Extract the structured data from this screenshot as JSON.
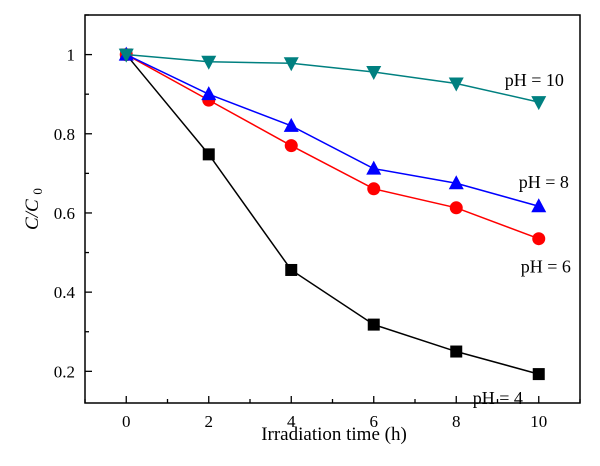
{
  "chart_data": {
    "type": "line",
    "xlabel": "Irradiation time (h)",
    "ylabel": {
      "main": "C/C",
      "sub": "0"
    },
    "xlim": [
      -1,
      11
    ],
    "ylim": [
      0.12,
      1.1
    ],
    "x_ticks": [
      0,
      2,
      4,
      6,
      8,
      10
    ],
    "x_tick_labels": [
      "0",
      "2",
      "4",
      "6",
      "8",
      "10"
    ],
    "y_ticks": [
      0.2,
      0.4,
      0.6,
      0.8,
      1.0
    ],
    "y_tick_labels": [
      "0.2",
      "0.4",
      "0.6",
      "0.8",
      "1"
    ],
    "grid": false,
    "legend": "none",
    "series": [
      {
        "name": "pH = 4",
        "color": "#000000",
        "marker": "square",
        "x": [
          0,
          2,
          4,
          6,
          8,
          10
        ],
        "y": [
          1.0,
          0.748,
          0.456,
          0.318,
          0.25,
          0.193
        ]
      },
      {
        "name": "pH = 6",
        "color": "#ff0000",
        "marker": "circle",
        "x": [
          0,
          2,
          4,
          6,
          8,
          10
        ],
        "y": [
          1.0,
          0.885,
          0.77,
          0.661,
          0.613,
          0.535
        ]
      },
      {
        "name": "pH = 8",
        "color": "#0000ff",
        "marker": "triangle-up",
        "x": [
          0,
          2,
          4,
          6,
          8,
          10
        ],
        "y": [
          1.0,
          0.9,
          0.82,
          0.712,
          0.675,
          0.617
        ]
      },
      {
        "name": "pH = 10",
        "color": "#008080",
        "marker": "triangle-down",
        "x": [
          0,
          2,
          4,
          6,
          8,
          10
        ],
        "y": [
          1.0,
          0.982,
          0.978,
          0.956,
          0.927,
          0.88
        ]
      }
    ]
  }
}
